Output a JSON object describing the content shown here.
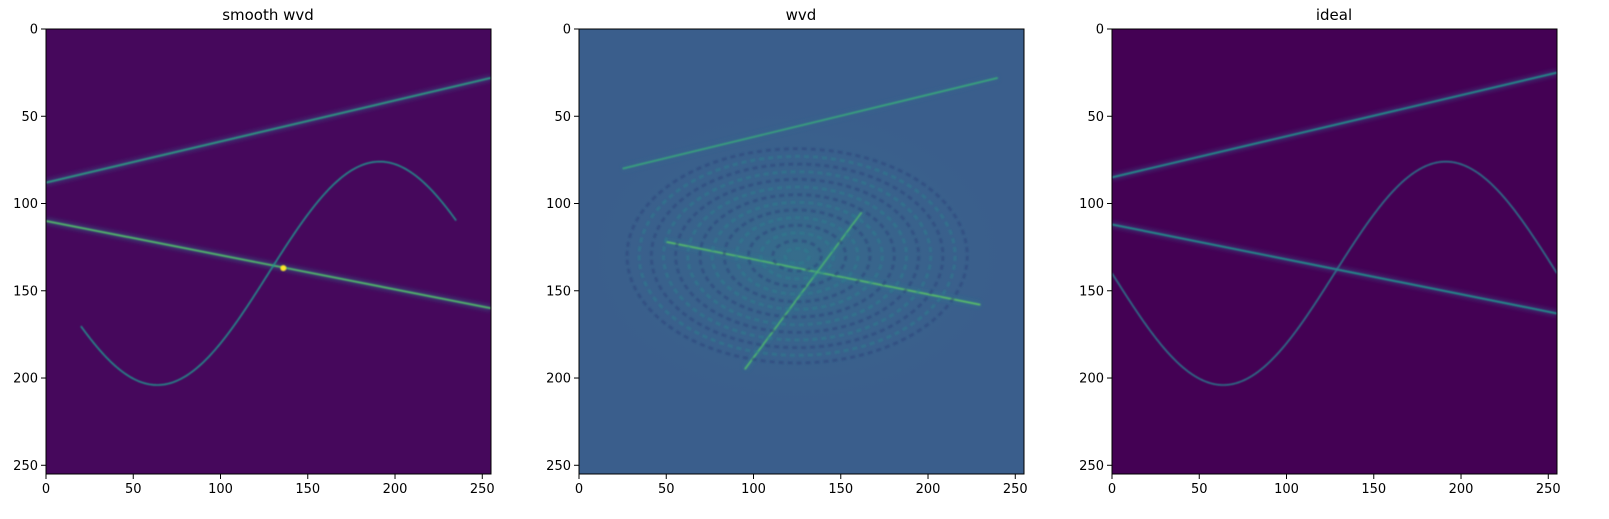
{
  "chart_data": [
    {
      "type": "heatmap",
      "title": "smooth wvd",
      "xlim": [
        0,
        255
      ],
      "ylim": [
        255,
        0
      ],
      "x_ticks": [
        0,
        50,
        100,
        150,
        200,
        250
      ],
      "y_ticks": [
        0,
        50,
        100,
        150,
        200,
        250
      ],
      "y_inverted": true,
      "colormap": "viridis",
      "background_color": "#46085c",
      "components": [
        {
          "kind": "line",
          "x": [
            0,
            255
          ],
          "y": [
            88,
            28
          ],
          "intensity": 0.55
        },
        {
          "kind": "line",
          "x": [
            0,
            255
          ],
          "y": [
            110,
            160
          ],
          "intensity": 0.7
        },
        {
          "kind": "sine",
          "x_range": [
            20,
            235
          ],
          "center": 140,
          "amplitude": 64,
          "period": 255,
          "intensity": 0.5
        },
        {
          "kind": "peak",
          "x": 136,
          "y": 137,
          "intensity": 1.0
        }
      ]
    },
    {
      "type": "heatmap",
      "title": "wvd",
      "xlim": [
        0,
        255
      ],
      "ylim": [
        255,
        0
      ],
      "x_ticks": [
        0,
        50,
        100,
        150,
        200,
        250
      ],
      "y_ticks": [
        0,
        50,
        100,
        150,
        200,
        250
      ],
      "y_inverted": true,
      "colormap": "viridis",
      "background_color": "#3a5e8c",
      "components": [
        {
          "kind": "line",
          "x": [
            25,
            240
          ],
          "y": [
            80,
            28
          ],
          "intensity": 0.6
        },
        {
          "kind": "line",
          "x": [
            50,
            230
          ],
          "y": [
            122,
            158
          ],
          "intensity": 0.75
        },
        {
          "kind": "line",
          "x": [
            95,
            162
          ],
          "y": [
            195,
            105
          ],
          "intensity": 0.7
        },
        {
          "kind": "interference",
          "center_x": 125,
          "center_y": 130,
          "extent": 100,
          "intensity": 0.4
        }
      ]
    },
    {
      "type": "heatmap",
      "title": "ideal",
      "xlim": [
        0,
        255
      ],
      "ylim": [
        255,
        0
      ],
      "x_ticks": [
        0,
        50,
        100,
        150,
        200,
        250
      ],
      "y_ticks": [
        0,
        50,
        100,
        150,
        200,
        250
      ],
      "y_inverted": true,
      "colormap": "viridis",
      "background_color": "#440154",
      "components": [
        {
          "kind": "line",
          "x": [
            0,
            255
          ],
          "y": [
            85,
            25
          ],
          "intensity": 0.5
        },
        {
          "kind": "line",
          "x": [
            0,
            255
          ],
          "y": [
            112,
            163
          ],
          "intensity": 0.5
        },
        {
          "kind": "sine",
          "x_range": [
            0,
            255
          ],
          "center": 140,
          "amplitude": 64,
          "period": 255,
          "intensity": 0.4
        }
      ]
    }
  ]
}
